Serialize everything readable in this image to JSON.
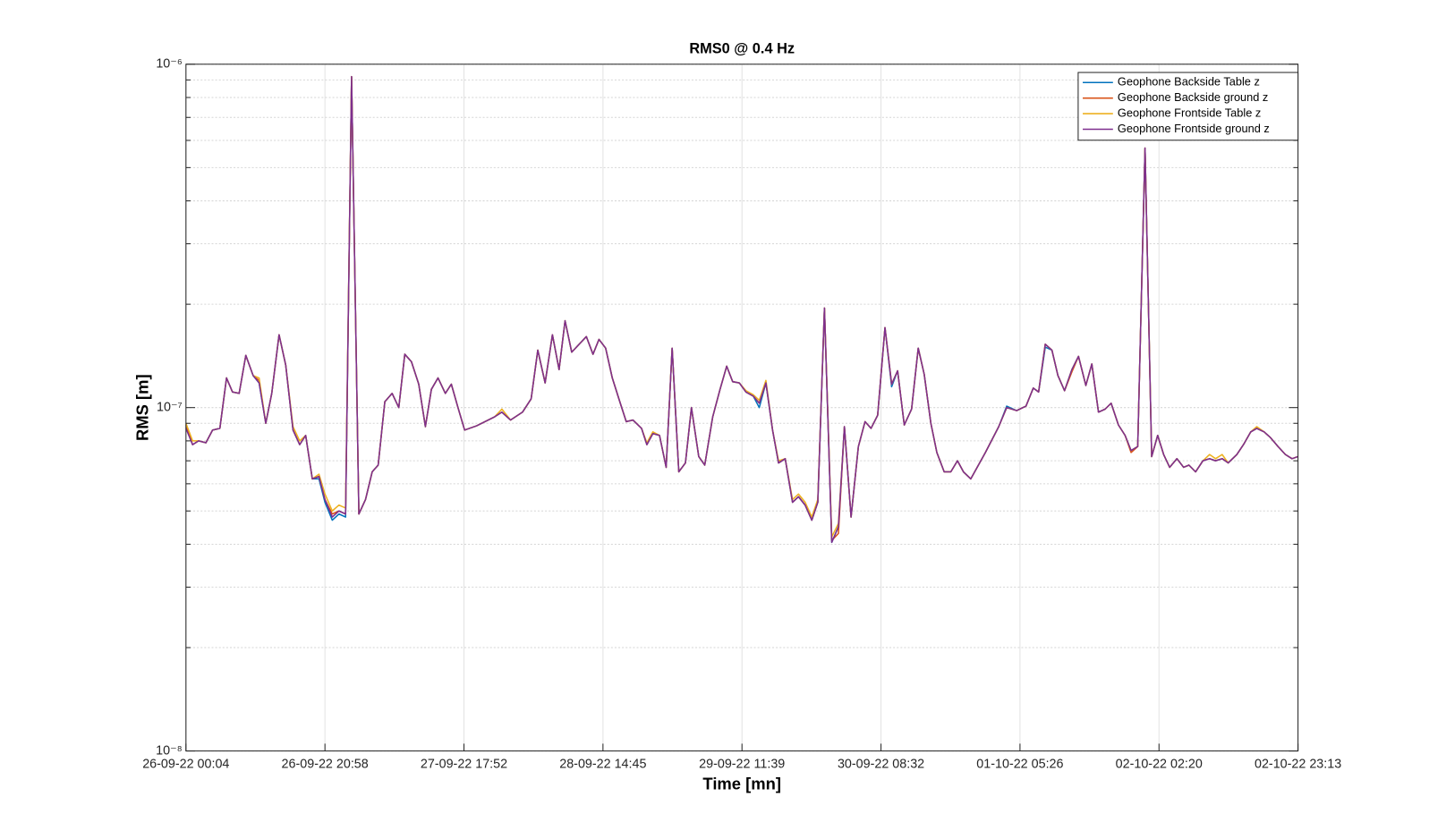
{
  "chart_data": {
    "type": "line",
    "title": "RMS0 @ 0.4 Hz",
    "x_label": "Time [mn]",
    "y_label": "RMS [m]",
    "y_scale": "log",
    "grid": true,
    "legend": "upper right",
    "xlim": [
      0,
      167.2
    ],
    "xticks": [
      {
        "value": 0,
        "label": "26-09-22 00:04"
      },
      {
        "value": 20.9,
        "label": "26-09-22 20:58"
      },
      {
        "value": 41.8,
        "label": "27-09-22 17:52"
      },
      {
        "value": 62.7,
        "label": "28-09-22 14:45"
      },
      {
        "value": 83.6,
        "label": "29-09-22 11:39"
      },
      {
        "value": 104.5,
        "label": "30-09-22 08:32"
      },
      {
        "value": 125.4,
        "label": "01-10-22 05:26"
      },
      {
        "value": 146.3,
        "label": "02-10-22 02:20"
      },
      {
        "value": 167.2,
        "label": "02-10-22 23:13"
      }
    ],
    "ylim": [
      1e-08,
      1e-06
    ],
    "yticks": [
      {
        "value": 1e-08,
        "label": "10⁻⁸"
      },
      {
        "value": 1e-07,
        "label": "10⁻⁷"
      },
      {
        "value": 1e-06,
        "label": "10⁻⁶"
      }
    ],
    "yminorticks": [
      2e-08,
      3e-08,
      4e-08,
      5e-08,
      6e-08,
      7e-08,
      8e-08,
      9e-08,
      2e-07,
      3e-07,
      4e-07,
      5e-07,
      6e-07,
      7e-07,
      8e-07,
      9e-07
    ],
    "x": [
      0,
      1.0,
      1.9,
      3.0,
      4.0,
      5.1,
      6.1,
      7.0,
      8.0,
      9.0,
      10.1,
      11.0,
      12.0,
      12.9,
      14.0,
      15.0,
      16.1,
      17.1,
      18.0,
      19.0,
      20.0,
      20.9,
      22.0,
      23.0,
      24.0,
      24.9,
      26.0,
      27.0,
      28.0,
      28.9,
      29.9,
      31.0,
      32.0,
      32.9,
      33.9,
      35.0,
      36.0,
      36.9,
      37.9,
      39.0,
      39.9,
      40.9,
      41.9,
      43.7,
      46.4,
      47.5,
      48.8,
      50.6,
      51.9,
      52.9,
      54.0,
      55.1,
      56.1,
      57.0,
      58.0,
      60.2,
      61.2,
      62.1,
      63.1,
      64.1,
      65.3,
      66.2,
      67.2,
      68.5,
      69.3,
      70.2,
      71.2,
      72.2,
      73.1,
      74.1,
      75.1,
      76.0,
      77.1,
      78.0,
      79.2,
      80.3,
      81.3,
      82.2,
      83.2,
      84.2,
      85.3,
      86.2,
      87.2,
      88.2,
      89.1,
      90.1,
      91.2,
      92.1,
      93.1,
      94.1,
      95.0,
      96.0,
      97.1,
      98.1,
      99.0,
      100.0,
      101.1,
      102.1,
      103.0,
      104.0,
      105.1,
      106.1,
      107.0,
      108.0,
      109.1,
      110.1,
      111.0,
      112.0,
      112.9,
      114.0,
      115.0,
      116.0,
      116.9,
      118.0,
      120.2,
      122.2,
      123.4,
      124.9,
      126.3,
      127.4,
      128.2,
      129.2,
      130.2,
      131.1,
      132.1,
      133.2,
      134.2,
      135.3,
      136.2,
      137.2,
      138.2,
      139.1,
      140.2,
      141.2,
      142.1,
      143.1,
      144.2,
      145.2,
      146.1,
      147.0,
      147.9,
      149.0,
      150.0,
      150.8,
      151.8,
      152.9,
      153.9,
      154.8,
      155.8,
      156.7,
      158.0,
      159.0,
      160.1,
      161.0,
      162.1,
      163.0,
      164.2,
      165.3,
      166.3,
      167.2
    ],
    "series": [
      {
        "name": "Geophone Backside Table z",
        "color": "#0072BD",
        "values": [
          8.8e-08,
          7.8e-08,
          8e-08,
          7.9e-08,
          8.6e-08,
          8.7e-08,
          1.22e-07,
          1.11e-07,
          1.1e-07,
          1.42e-07,
          1.24e-07,
          1.18e-07,
          9e-08,
          1.1e-07,
          1.63e-07,
          1.33e-07,
          8.6e-08,
          7.8e-08,
          8.3e-08,
          6.2e-08,
          6.2e-08,
          5.3e-08,
          4.7e-08,
          4.9e-08,
          4.8e-08,
          9.2e-07,
          4.9e-08,
          5.4e-08,
          6.5e-08,
          6.8e-08,
          1.04e-07,
          1.1e-07,
          1e-07,
          1.43e-07,
          1.36e-07,
          1.17e-07,
          8.8e-08,
          1.13e-07,
          1.22e-07,
          1.1e-07,
          1.17e-07,
          1e-07,
          8.6e-08,
          8.85e-08,
          9.4e-08,
          9.7e-08,
          9.2e-08,
          9.7e-08,
          1.06e-07,
          1.47e-07,
          1.18e-07,
          1.63e-07,
          1.29e-07,
          1.79e-07,
          1.45e-07,
          1.61e-07,
          1.43e-07,
          1.58e-07,
          1.49e-07,
          1.22e-07,
          1.03e-07,
          9.1e-08,
          9.2e-08,
          8.7e-08,
          7.8e-08,
          8.4e-08,
          8.3e-08,
          6.7e-08,
          1.49e-07,
          6.5e-08,
          6.9e-08,
          1e-07,
          7.2e-08,
          6.8e-08,
          9.4e-08,
          1.13e-07,
          1.32e-07,
          1.19e-07,
          1.18e-07,
          1.11e-07,
          1.08e-07,
          1e-07,
          1.18e-07,
          8.6e-08,
          6.9e-08,
          7.1e-08,
          5.3e-08,
          5.5e-08,
          5.2e-08,
          4.7e-08,
          5.3e-08,
          1.95e-07,
          4.05e-08,
          4.5e-08,
          8.8e-08,
          4.8e-08,
          7.7e-08,
          9.1e-08,
          8.7e-08,
          9.5e-08,
          1.71e-07,
          1.15e-07,
          1.28e-07,
          8.9e-08,
          9.9e-08,
          1.49e-07,
          1.25e-07,
          9e-08,
          7.4e-08,
          6.5e-08,
          6.5e-08,
          7e-08,
          6.5e-08,
          6.2e-08,
          7.4e-08,
          8.8e-08,
          1.01e-07,
          9.8e-08,
          1.01e-07,
          1.14e-07,
          1.11e-07,
          1.5e-07,
          1.47e-07,
          1.24e-07,
          1.12e-07,
          1.29e-07,
          1.41e-07,
          1.16e-07,
          1.34e-07,
          9.7e-08,
          9.9e-08,
          1.03e-07,
          8.9e-08,
          8.3e-08,
          7.5e-08,
          7.7e-08,
          5.7e-07,
          7.2e-08,
          8.3e-08,
          7.3e-08,
          6.7e-08,
          7.1e-08,
          6.7e-08,
          6.8e-08,
          6.5e-08,
          7e-08,
          7.1e-08,
          7e-08,
          7.1e-08,
          6.9e-08,
          7.3e-08,
          7.8e-08,
          8.5e-08,
          8.7e-08,
          8.5e-08,
          8.2e-08,
          7.7e-08,
          7.3e-08,
          7.1e-08,
          7.2e-08
        ]
      },
      {
        "name": "Geophone Backside ground z",
        "color": "#D95319",
        "values": [
          8.9e-08,
          7.8e-08,
          8e-08,
          7.9e-08,
          8.6e-08,
          8.7e-08,
          1.22e-07,
          1.11e-07,
          1.1e-07,
          1.42e-07,
          1.24e-07,
          1.2e-07,
          9e-08,
          1.1e-07,
          1.63e-07,
          1.33e-07,
          8.6e-08,
          7.8e-08,
          8.3e-08,
          6.2e-08,
          6.3e-08,
          5.4e-08,
          4.9e-08,
          5e-08,
          4.9e-08,
          9.2e-07,
          4.9e-08,
          5.4e-08,
          6.5e-08,
          6.8e-08,
          1.04e-07,
          1.1e-07,
          1e-07,
          1.43e-07,
          1.36e-07,
          1.17e-07,
          8.8e-08,
          1.13e-07,
          1.22e-07,
          1.1e-07,
          1.17e-07,
          1e-07,
          8.6e-08,
          8.85e-08,
          9.4e-08,
          9.7e-08,
          9.2e-08,
          9.7e-08,
          1.06e-07,
          1.47e-07,
          1.18e-07,
          1.63e-07,
          1.29e-07,
          1.79e-07,
          1.45e-07,
          1.61e-07,
          1.43e-07,
          1.58e-07,
          1.49e-07,
          1.22e-07,
          1.03e-07,
          9.1e-08,
          9.2e-08,
          8.7e-08,
          7.8e-08,
          8.4e-08,
          8.3e-08,
          6.7e-08,
          1.49e-07,
          6.5e-08,
          6.9e-08,
          1e-07,
          7.2e-08,
          6.8e-08,
          9.4e-08,
          1.13e-07,
          1.32e-07,
          1.19e-07,
          1.18e-07,
          1.11e-07,
          1.08e-07,
          1.03e-07,
          1.18e-07,
          8.6e-08,
          6.9e-08,
          7.1e-08,
          5.3e-08,
          5.5e-08,
          5.2e-08,
          4.7e-08,
          5.3e-08,
          1.95e-07,
          4.1e-08,
          4.3e-08,
          8.8e-08,
          4.8e-08,
          7.7e-08,
          9.1e-08,
          8.7e-08,
          9.5e-08,
          1.71e-07,
          1.17e-07,
          1.28e-07,
          8.9e-08,
          9.9e-08,
          1.49e-07,
          1.25e-07,
          9e-08,
          7.4e-08,
          6.5e-08,
          6.5e-08,
          7e-08,
          6.5e-08,
          6.2e-08,
          7.4e-08,
          8.8e-08,
          1e-07,
          9.8e-08,
          1.01e-07,
          1.14e-07,
          1.11e-07,
          1.53e-07,
          1.47e-07,
          1.24e-07,
          1.12e-07,
          1.27e-07,
          1.41e-07,
          1.16e-07,
          1.34e-07,
          9.7e-08,
          9.9e-08,
          1.03e-07,
          8.9e-08,
          8.3e-08,
          7.4e-08,
          7.7e-08,
          5.7e-07,
          7.2e-08,
          8.3e-08,
          7.3e-08,
          6.7e-08,
          7.1e-08,
          6.7e-08,
          6.8e-08,
          6.5e-08,
          7e-08,
          7.1e-08,
          7e-08,
          7.1e-08,
          6.9e-08,
          7.3e-08,
          7.8e-08,
          8.5e-08,
          8.7e-08,
          8.5e-08,
          8.2e-08,
          7.7e-08,
          7.3e-08,
          7.1e-08,
          7.2e-08
        ]
      },
      {
        "name": "Geophone Frontside Table z",
        "color": "#EDB120",
        "values": [
          9e-08,
          8e-08,
          8e-08,
          7.9e-08,
          8.6e-08,
          8.7e-08,
          1.22e-07,
          1.11e-07,
          1.1e-07,
          1.42e-07,
          1.24e-07,
          1.22e-07,
          9e-08,
          1.1e-07,
          1.63e-07,
          1.33e-07,
          8.8e-08,
          8e-08,
          8.3e-08,
          6.2e-08,
          6.4e-08,
          5.6e-08,
          5e-08,
          5.2e-08,
          5.1e-08,
          9.2e-07,
          4.9e-08,
          5.4e-08,
          6.5e-08,
          6.8e-08,
          1.04e-07,
          1.1e-07,
          1e-07,
          1.43e-07,
          1.36e-07,
          1.17e-07,
          8.8e-08,
          1.13e-07,
          1.22e-07,
          1.1e-07,
          1.17e-07,
          1e-07,
          8.6e-08,
          8.85e-08,
          9.4e-08,
          9.9e-08,
          9.2e-08,
          9.7e-08,
          1.06e-07,
          1.47e-07,
          1.18e-07,
          1.63e-07,
          1.29e-07,
          1.79e-07,
          1.45e-07,
          1.61e-07,
          1.43e-07,
          1.58e-07,
          1.49e-07,
          1.22e-07,
          1.03e-07,
          9.1e-08,
          9.2e-08,
          8.7e-08,
          7.9e-08,
          8.5e-08,
          8.3e-08,
          6.7e-08,
          1.49e-07,
          6.5e-08,
          6.9e-08,
          1e-07,
          7.2e-08,
          6.8e-08,
          9.4e-08,
          1.13e-07,
          1.32e-07,
          1.19e-07,
          1.18e-07,
          1.12e-07,
          1.09e-07,
          1.05e-07,
          1.2e-07,
          8.6e-08,
          7e-08,
          7.1e-08,
          5.4e-08,
          5.6e-08,
          5.3e-08,
          4.8e-08,
          5.4e-08,
          1.95e-07,
          4.2e-08,
          4.6e-08,
          8.8e-08,
          4.8e-08,
          7.7e-08,
          9.1e-08,
          8.7e-08,
          9.5e-08,
          1.71e-07,
          1.17e-07,
          1.28e-07,
          8.9e-08,
          9.9e-08,
          1.49e-07,
          1.25e-07,
          9e-08,
          7.4e-08,
          6.5e-08,
          6.5e-08,
          7e-08,
          6.5e-08,
          6.2e-08,
          7.4e-08,
          8.8e-08,
          1e-07,
          9.8e-08,
          1.01e-07,
          1.14e-07,
          1.11e-07,
          1.53e-07,
          1.47e-07,
          1.24e-07,
          1.12e-07,
          1.29e-07,
          1.41e-07,
          1.16e-07,
          1.34e-07,
          9.7e-08,
          9.9e-08,
          1.03e-07,
          8.9e-08,
          8.3e-08,
          7.5e-08,
          7.7e-08,
          5.7e-07,
          7.2e-08,
          8.3e-08,
          7.3e-08,
          6.7e-08,
          7.1e-08,
          6.7e-08,
          6.8e-08,
          6.5e-08,
          7e-08,
          7.3e-08,
          7.1e-08,
          7.3e-08,
          6.9e-08,
          7.3e-08,
          7.8e-08,
          8.5e-08,
          8.8e-08,
          8.5e-08,
          8.2e-08,
          7.7e-08,
          7.3e-08,
          7.1e-08,
          7.2e-08
        ]
      },
      {
        "name": "Geophone Frontside ground z",
        "color": "#7E2F8E",
        "values": [
          8.7e-08,
          7.8e-08,
          8e-08,
          7.9e-08,
          8.6e-08,
          8.7e-08,
          1.22e-07,
          1.11e-07,
          1.1e-07,
          1.42e-07,
          1.24e-07,
          1.18e-07,
          9e-08,
          1.1e-07,
          1.63e-07,
          1.33e-07,
          8.6e-08,
          7.8e-08,
          8.3e-08,
          6.2e-08,
          6.3e-08,
          5.4e-08,
          4.8e-08,
          5e-08,
          4.9e-08,
          9.2e-07,
          4.9e-08,
          5.4e-08,
          6.5e-08,
          6.8e-08,
          1.04e-07,
          1.1e-07,
          1e-07,
          1.43e-07,
          1.36e-07,
          1.17e-07,
          8.8e-08,
          1.13e-07,
          1.22e-07,
          1.1e-07,
          1.17e-07,
          1e-07,
          8.6e-08,
          8.85e-08,
          9.4e-08,
          9.7e-08,
          9.2e-08,
          9.7e-08,
          1.06e-07,
          1.47e-07,
          1.18e-07,
          1.63e-07,
          1.29e-07,
          1.79e-07,
          1.45e-07,
          1.61e-07,
          1.43e-07,
          1.58e-07,
          1.49e-07,
          1.22e-07,
          1.03e-07,
          9.1e-08,
          9.2e-08,
          8.7e-08,
          7.8e-08,
          8.4e-08,
          8.3e-08,
          6.7e-08,
          1.49e-07,
          6.5e-08,
          6.9e-08,
          1e-07,
          7.2e-08,
          6.8e-08,
          9.4e-08,
          1.13e-07,
          1.32e-07,
          1.19e-07,
          1.18e-07,
          1.11e-07,
          1.08e-07,
          1.03e-07,
          1.18e-07,
          8.6e-08,
          6.9e-08,
          7.1e-08,
          5.3e-08,
          5.5e-08,
          5.2e-08,
          4.7e-08,
          5.3e-08,
          1.95e-07,
          4.05e-08,
          4.5e-08,
          8.8e-08,
          4.8e-08,
          7.7e-08,
          9.1e-08,
          8.7e-08,
          9.5e-08,
          1.71e-07,
          1.17e-07,
          1.28e-07,
          8.9e-08,
          9.9e-08,
          1.49e-07,
          1.25e-07,
          9e-08,
          7.4e-08,
          6.5e-08,
          6.5e-08,
          7e-08,
          6.5e-08,
          6.2e-08,
          7.4e-08,
          8.8e-08,
          1e-07,
          9.8e-08,
          1.01e-07,
          1.14e-07,
          1.11e-07,
          1.53e-07,
          1.47e-07,
          1.24e-07,
          1.12e-07,
          1.29e-07,
          1.41e-07,
          1.16e-07,
          1.34e-07,
          9.7e-08,
          9.9e-08,
          1.03e-07,
          8.9e-08,
          8.3e-08,
          7.5e-08,
          7.7e-08,
          5.7e-07,
          7.2e-08,
          8.3e-08,
          7.3e-08,
          6.7e-08,
          7.1e-08,
          6.7e-08,
          6.8e-08,
          6.5e-08,
          7e-08,
          7.1e-08,
          7e-08,
          7.1e-08,
          6.9e-08,
          7.3e-08,
          7.8e-08,
          8.5e-08,
          8.7e-08,
          8.5e-08,
          8.2e-08,
          7.7e-08,
          7.3e-08,
          7.1e-08,
          7.2e-08
        ]
      }
    ]
  }
}
